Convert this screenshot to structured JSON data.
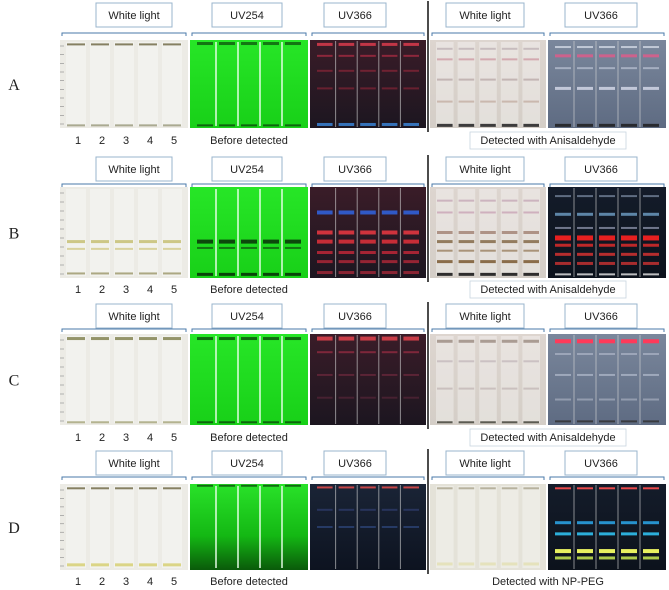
{
  "figure": {
    "rows": [
      {
        "label": "A",
        "headers": [
          "White light",
          "UV254",
          "UV366",
          "White light",
          "UV366"
        ],
        "lane_numbers": [
          "1",
          "2",
          "3",
          "4",
          "5"
        ],
        "before_caption": "Before detected",
        "after_caption": "Detected with Anisaldehyde"
      },
      {
        "label": "B",
        "headers": [
          "White light",
          "UV254",
          "UV366",
          "White light",
          "UV366"
        ],
        "lane_numbers": [
          "1",
          "2",
          "3",
          "4",
          "5"
        ],
        "before_caption": "Before detected",
        "after_caption": "Detected with Anisaldehyde"
      },
      {
        "label": "C",
        "headers": [
          "White light",
          "UV254",
          "UV366",
          "White light",
          "UV366"
        ],
        "lane_numbers": [
          "1",
          "2",
          "3",
          "4",
          "5"
        ],
        "before_caption": "Before detected",
        "after_caption": "Detected with Anisaldehyde"
      },
      {
        "label": "D",
        "headers": [
          "White light",
          "UV254",
          "UV366",
          "White light",
          "UV366"
        ],
        "lane_numbers": [
          "1",
          "2",
          "3",
          "4",
          "5"
        ],
        "before_caption": "Before detected",
        "after_caption": "Detected with NP-PEG"
      }
    ],
    "colors": {
      "plate_white": "#ecebe5",
      "plate_uv254": "#1fe21f",
      "plate_uv366": "#2a1a24",
      "plate_stained": "#dcd6cf",
      "plate_uv366_stained": "#6f7f98"
    }
  }
}
